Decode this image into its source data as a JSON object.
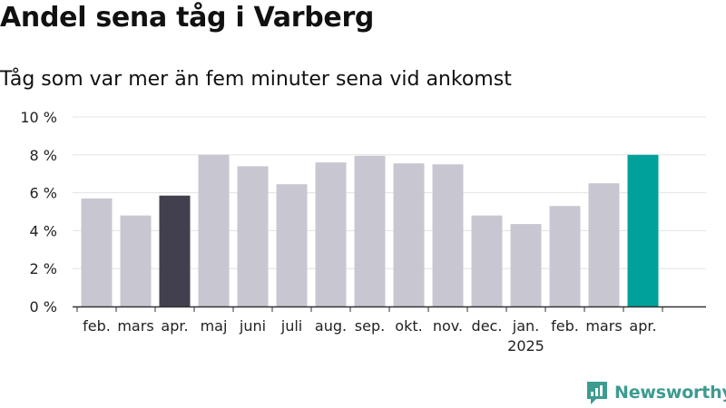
{
  "chart_data": {
    "type": "bar",
    "title": "Andel sena tåg i Varberg",
    "subtitle": "Tåg som var mer än fem minuter sena vid ankomst",
    "categories": [
      "feb.",
      "mars",
      "apr.",
      "maj",
      "juni",
      "juli",
      "aug.",
      "sep.",
      "okt.",
      "nov.",
      "dec.",
      "jan.",
      "feb.",
      "mars",
      "apr."
    ],
    "year_labels": [
      {
        "index": 11,
        "label": "2025"
      }
    ],
    "values": [
      5.7,
      4.8,
      5.85,
      8.0,
      7.4,
      6.45,
      7.6,
      7.95,
      7.55,
      7.5,
      4.8,
      4.35,
      5.3,
      6.5,
      8.0
    ],
    "bar_colors": [
      "#c8c7d1",
      "#c8c7d1",
      "#42404e",
      "#c8c7d1",
      "#c8c7d1",
      "#c8c7d1",
      "#c8c7d1",
      "#c8c7d1",
      "#c8c7d1",
      "#c8c7d1",
      "#c8c7d1",
      "#c8c7d1",
      "#c8c7d1",
      "#c8c7d1",
      "#00a19a"
    ],
    "ylim": [
      0,
      10
    ],
    "yticks": [
      0,
      2,
      4,
      6,
      8,
      10
    ],
    "ytick_labels": [
      "0 %",
      "2 %",
      "4 %",
      "6 %",
      "8 %",
      "10 %"
    ],
    "grid": true,
    "xlabel": "",
    "ylabel": ""
  },
  "brand": {
    "name": "Newsworthy",
    "icon": "newsworthy-logo-icon",
    "color": "#3d9b90"
  }
}
